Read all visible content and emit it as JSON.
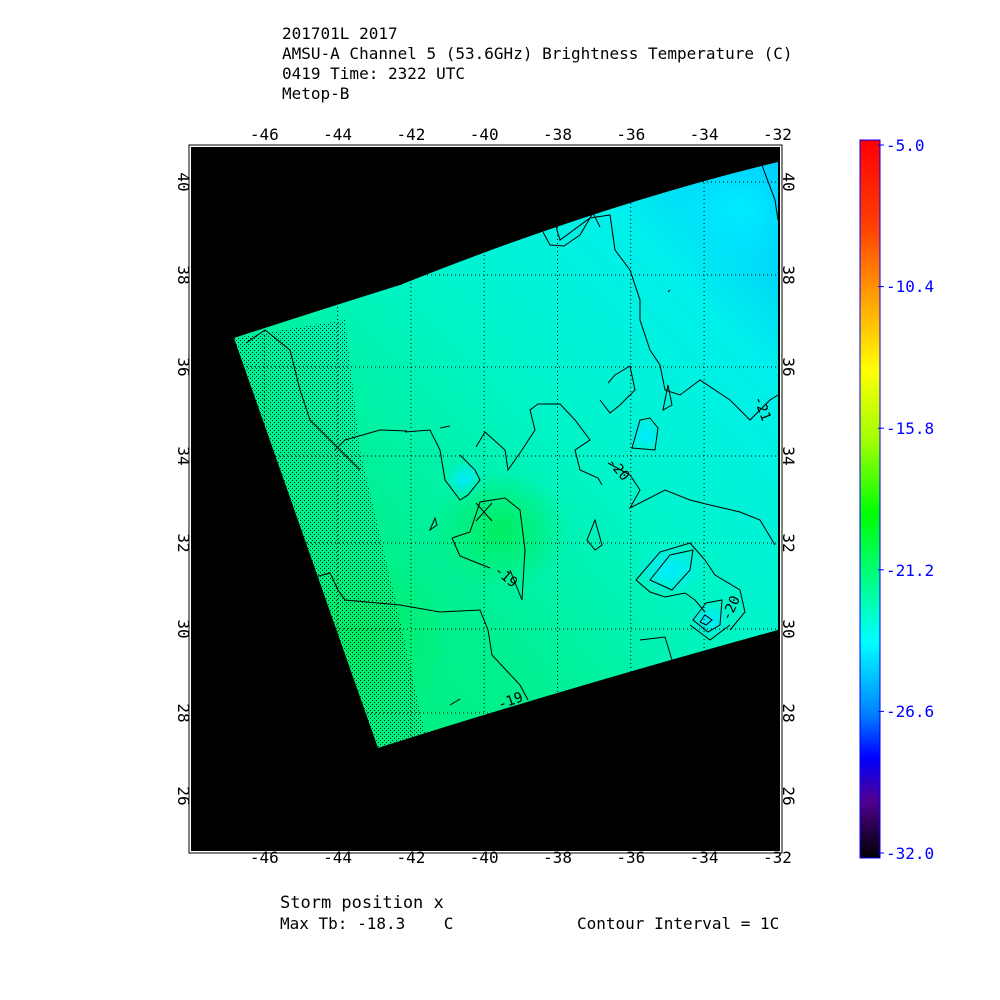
{
  "header": {
    "line1": "201701L 2017",
    "line2": "AMSU-A Channel 5 (53.6GHz) Brightness Temperature (C)",
    "line3": "0419 Time: 2322 UTC",
    "line4": "Metop-B"
  },
  "map": {
    "lon_ticks": [
      "-46",
      "-44",
      "-42",
      "-40",
      "-38",
      "-36",
      "-34",
      "-32"
    ],
    "lat_ticks": [
      "40",
      "38",
      "36",
      "34",
      "32",
      "30",
      "28",
      "26"
    ],
    "contour_labels": [
      "-19",
      "-20",
      "-21",
      "-19",
      "-20"
    ],
    "storm_marker": "x",
    "no_data_color": "#000000",
    "swath_colors": {
      "warm": "#00f070",
      "mid": "#00f5c8",
      "cool": "#00e8ff",
      "cold": "#00c0ff"
    }
  },
  "colorbar": {
    "ticks": [
      "-5.0",
      "-10.4",
      "-15.8",
      "-21.2",
      "-26.6",
      "-32.0"
    ],
    "min": -32.0,
    "max": -5.0,
    "tick_color": "#0000ff"
  },
  "footer": {
    "storm_position": "Storm position x",
    "max_tb_label": "Max Tb: -18.3    C",
    "contour_interval": "Contour Interval = 1C"
  }
}
